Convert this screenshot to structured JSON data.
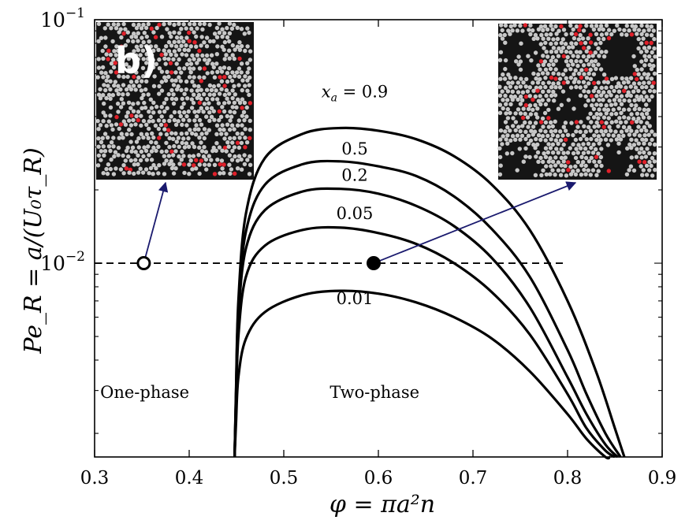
{
  "chart_data": {
    "type": "line",
    "panel_label": "b)",
    "xlabel": "φ = πa²n",
    "ylabel": "Pe_R = a/(U₀τ_R)",
    "xlim": [
      0.3,
      0.9
    ],
    "ylim": [
      0.0016,
      0.1
    ],
    "yscale": "log",
    "xticks": [
      0.3,
      0.4,
      0.5,
      0.6,
      0.7,
      0.8,
      0.9
    ],
    "xtick_labels": [
      "0.3",
      "0.4",
      "0.5",
      "0.6",
      "0.7",
      "0.8",
      "0.9"
    ],
    "yticks_major": [
      {
        "value": 0.1,
        "base": "10",
        "exp": "−1"
      },
      {
        "value": 0.01,
        "base": "10",
        "exp": "−2"
      }
    ],
    "series": [
      {
        "name": "x_a = 0.9",
        "label_prefix": "x",
        "label_sub": "a",
        "label_value": "= 0.9",
        "label_at": [
          0.575,
          0.048
        ],
        "x": [
          0.448,
          0.4495,
          0.452,
          0.46,
          0.48,
          0.52,
          0.56,
          0.6,
          0.64,
          0.68,
          0.72,
          0.76,
          0.8,
          0.83,
          0.85,
          0.86
        ],
        "y": [
          0.0016,
          0.003,
          0.007,
          0.016,
          0.027,
          0.034,
          0.0359,
          0.035,
          0.0323,
          0.0275,
          0.021,
          0.0137,
          0.007,
          0.0036,
          0.0021,
          0.0016
        ]
      },
      {
        "name": "0.5",
        "label_value": "0.5",
        "label_at": [
          0.575,
          0.028
        ],
        "x": [
          0.448,
          0.4495,
          0.452,
          0.46,
          0.48,
          0.52,
          0.56,
          0.6,
          0.64,
          0.68,
          0.72,
          0.76,
          0.8,
          0.82,
          0.84,
          0.856
        ],
        "y": [
          0.0016,
          0.0029,
          0.0065,
          0.0135,
          0.021,
          0.0255,
          0.0262,
          0.025,
          0.0228,
          0.0188,
          0.0138,
          0.0088,
          0.0044,
          0.0029,
          0.002,
          0.0016
        ]
      },
      {
        "name": "0.2",
        "label_value": "0.2",
        "label_at": [
          0.575,
          0.0218
        ],
        "x": [
          0.448,
          0.4495,
          0.452,
          0.46,
          0.48,
          0.52,
          0.56,
          0.6,
          0.64,
          0.68,
          0.72,
          0.76,
          0.8,
          0.82,
          0.84,
          0.853
        ],
        "y": [
          0.0016,
          0.0028,
          0.006,
          0.0115,
          0.0165,
          0.0197,
          0.0202,
          0.0193,
          0.0172,
          0.0142,
          0.0105,
          0.0066,
          0.0034,
          0.0024,
          0.0018,
          0.0016
        ]
      },
      {
        "name": "0.05",
        "label_value": "0.05",
        "label_at": [
          0.575,
          0.0152
        ],
        "x": [
          0.448,
          0.4495,
          0.452,
          0.46,
          0.48,
          0.52,
          0.56,
          0.6,
          0.64,
          0.68,
          0.72,
          0.76,
          0.8,
          0.82,
          0.84,
          0.85
        ],
        "y": [
          0.0016,
          0.0026,
          0.005,
          0.0088,
          0.0118,
          0.0137,
          0.014,
          0.0133,
          0.012,
          0.01,
          0.0076,
          0.0051,
          0.0029,
          0.0021,
          0.0017,
          0.0016
        ]
      },
      {
        "name": "0.01",
        "label_value": "0.01",
        "label_at": [
          0.575,
          0.0068
        ],
        "x": [
          0.448,
          0.4495,
          0.452,
          0.46,
          0.48,
          0.52,
          0.56,
          0.6,
          0.64,
          0.68,
          0.72,
          0.76,
          0.8,
          0.82,
          0.84,
          0.845
        ],
        "y": [
          0.0016,
          0.0022,
          0.0034,
          0.0049,
          0.0063,
          0.0074,
          0.0077,
          0.0075,
          0.0069,
          0.006,
          0.0049,
          0.0036,
          0.0024,
          0.0019,
          0.0016,
          0.0016
        ]
      }
    ],
    "reference_line": {
      "y": 0.01,
      "x_range": [
        0.3,
        0.8
      ],
      "style": "dashed"
    },
    "points": [
      {
        "name": "one-phase-point",
        "x": 0.352,
        "y": 0.01,
        "filled": false
      },
      {
        "name": "two-phase-point",
        "x": 0.595,
        "y": 0.01,
        "filled": true
      }
    ],
    "annotations": [
      {
        "text": "One-phase",
        "x": 0.353,
        "y": 0.0028
      },
      {
        "text": "Two-phase",
        "x": 0.596,
        "y": 0.0028
      }
    ],
    "insets": [
      {
        "name": "inset-one-phase",
        "arrow_from_point": 0,
        "red_fraction": 0.06
      },
      {
        "name": "inset-two-phase",
        "arrow_from_point": 1,
        "red_fraction": 0.05
      }
    ],
    "colors": {
      "curve": "#000000",
      "arrow": "#1a1a6e",
      "particle": "#c8c8c8",
      "particle_red": "#e0202a",
      "inset_bg": "#151515"
    }
  }
}
